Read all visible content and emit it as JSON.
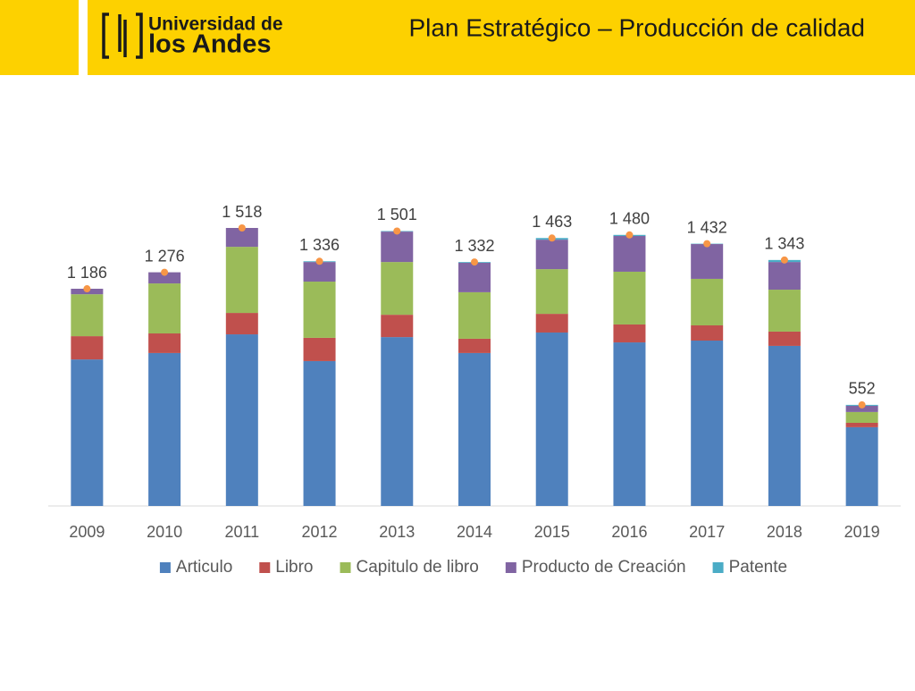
{
  "header": {
    "logo_line1": "Universidad de",
    "logo_line2": "los Andes",
    "title": "Plan Estratégico – Producción de calidad"
  },
  "chart_data": {
    "type": "bar",
    "stacked": true,
    "categories": [
      "2009",
      "2010",
      "2011",
      "2012",
      "2013",
      "2014",
      "2015",
      "2016",
      "2017",
      "2018",
      "2019"
    ],
    "series": [
      {
        "name": "Articulo",
        "color": "#4f81bd",
        "values": [
          800,
          835,
          937,
          791,
          922,
          835,
          947,
          893,
          903,
          874,
          430
        ]
      },
      {
        "name": "Libro",
        "color": "#c0504d",
        "values": [
          127,
          107,
          117,
          127,
          122,
          78,
          102,
          98,
          83,
          78,
          24
        ]
      },
      {
        "name": "Capitulo de libro",
        "color": "#9bbb59",
        "values": [
          229,
          273,
          361,
          307,
          288,
          254,
          244,
          288,
          254,
          229,
          59
        ]
      },
      {
        "name": "Producto de Creación",
        "color": "#8064a2",
        "values": [
          30,
          61,
          103,
          107,
          166,
          161,
          161,
          195,
          190,
          151,
          34
        ]
      },
      {
        "name": "Patente",
        "color": "#4bacc6",
        "values": [
          0,
          0,
          0,
          4,
          3,
          4,
          9,
          6,
          2,
          11,
          5
        ]
      }
    ],
    "totals": [
      1186,
      1276,
      1518,
      1336,
      1501,
      1332,
      1463,
      1480,
      1432,
      1343,
      552
    ],
    "total_labels": [
      "1 186",
      "1 276",
      "1 518",
      "1 336",
      "1 501",
      "1 332",
      "1 463",
      "1 480",
      "1 432",
      "1 343",
      "552"
    ],
    "total_marker_color": "#f79646",
    "legend": "bottom"
  }
}
